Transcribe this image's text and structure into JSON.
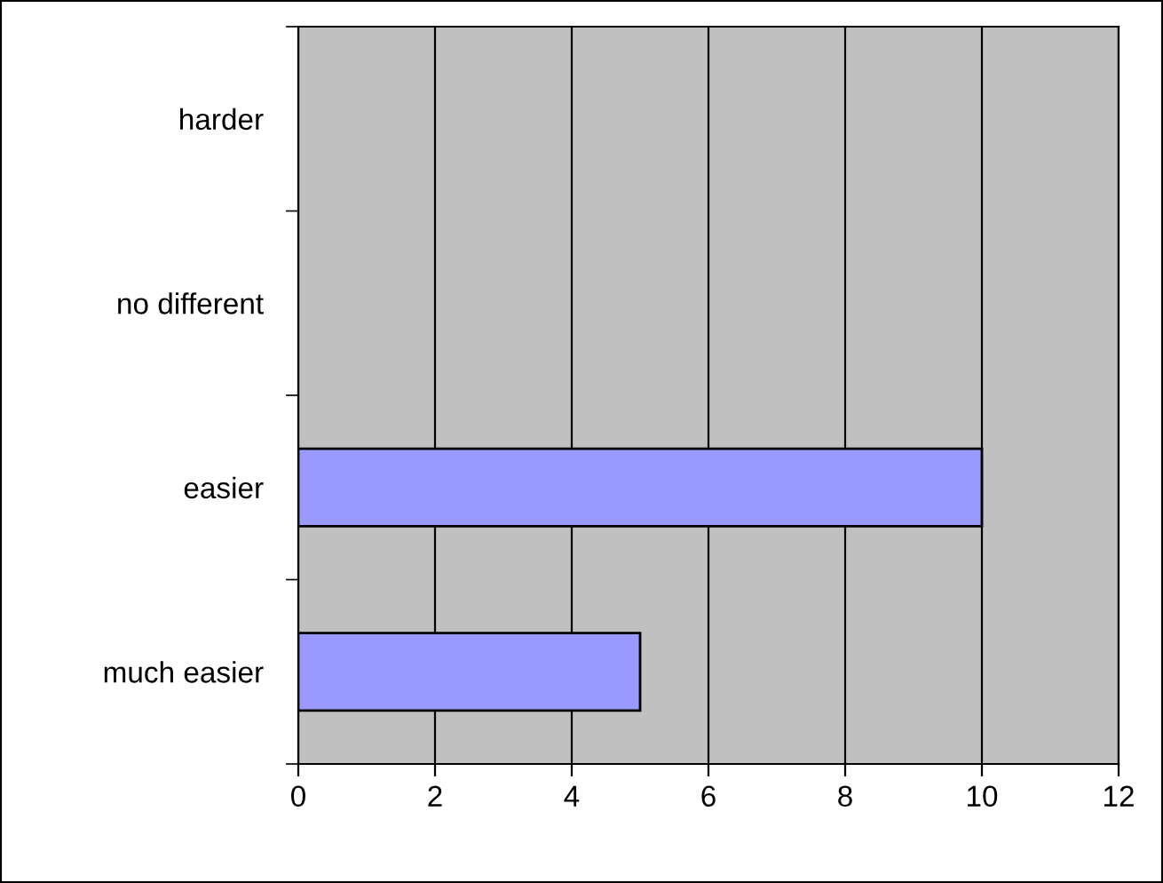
{
  "chart_data": {
    "type": "bar",
    "orientation": "horizontal",
    "categories": [
      "harder",
      "no different",
      "easier",
      "much easier"
    ],
    "values": [
      0,
      0,
      10,
      5
    ],
    "color": "#9999ff",
    "xlim": [
      0,
      12
    ],
    "xticks": [
      0,
      2,
      4,
      6,
      8,
      10,
      12
    ],
    "grid": "x",
    "legend": false
  }
}
